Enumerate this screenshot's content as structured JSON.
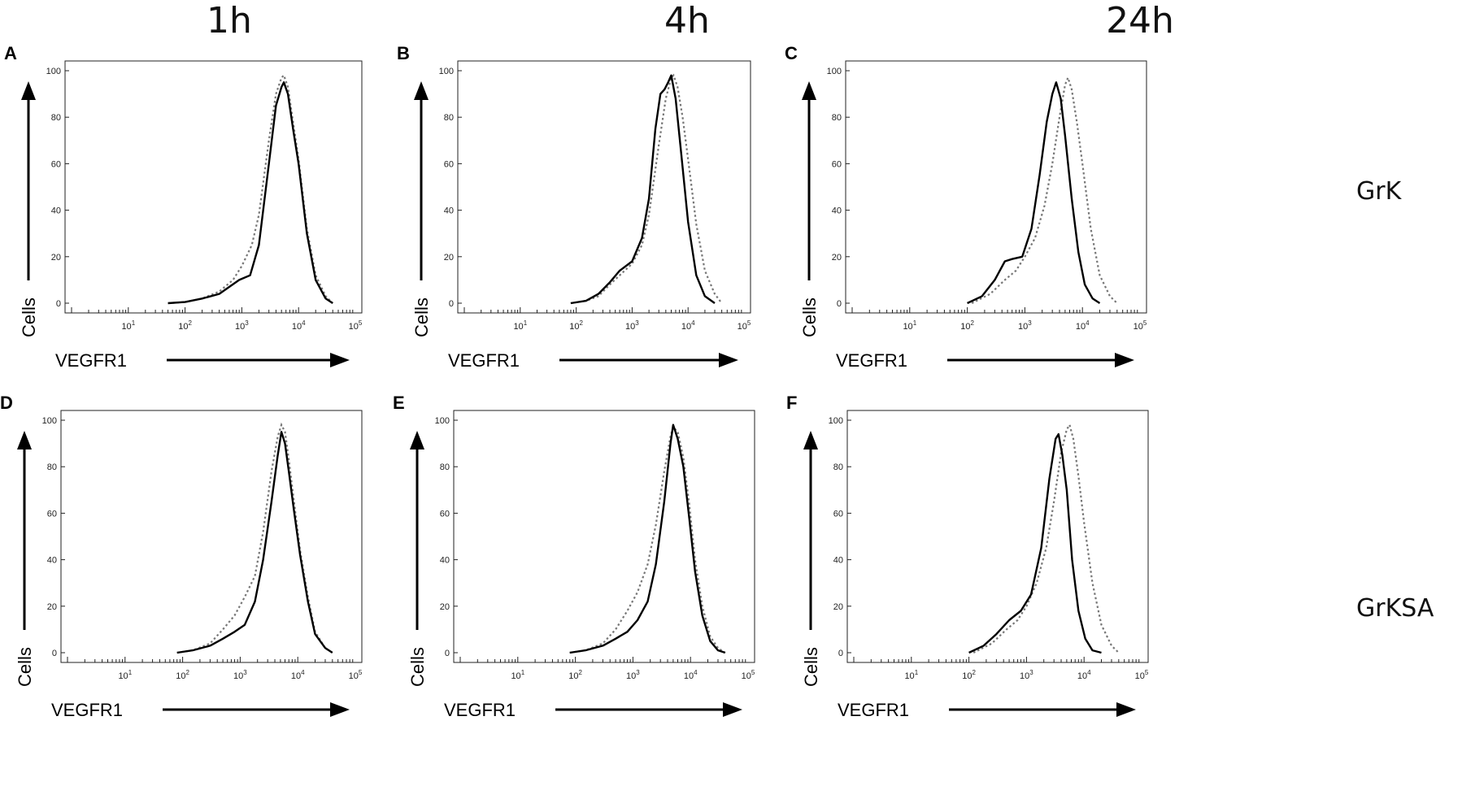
{
  "column_headers": [
    "1h",
    "4h",
    "24h"
  ],
  "row_labels": [
    "GrK",
    "GrKSA"
  ],
  "chart_data": [
    {
      "type": "line",
      "panel": "A",
      "time": "1h",
      "strain": "GrK",
      "xlabel": "VEGFR1",
      "ylabel": "Cells",
      "xscale": "log",
      "xlim": [
        1,
        100000
      ],
      "ylim": [
        0,
        100
      ],
      "yticks": [
        "0",
        "20",
        "40",
        "60",
        "80",
        "100"
      ],
      "xticks": [
        {
          "base": "10",
          "exp": "1"
        },
        {
          "base": "10",
          "exp": "2"
        },
        {
          "base": "10",
          "exp": "3"
        },
        {
          "base": "10",
          "exp": "4"
        },
        {
          "base": "10",
          "exp": "5"
        }
      ],
      "series": [
        {
          "name": "solid",
          "style": "solid",
          "x": [
            50,
            100,
            200,
            400,
            600,
            900,
            1400,
            2000,
            3000,
            4000,
            5000,
            5500,
            6500,
            8000,
            10000,
            14000,
            20000,
            30000,
            40000
          ],
          "y": [
            0,
            0.5,
            2,
            4,
            7,
            10,
            12,
            25,
            60,
            85,
            93,
            95,
            90,
            75,
            60,
            30,
            10,
            2,
            0
          ]
        },
        {
          "name": "dotted",
          "style": "dotted",
          "x": [
            50,
            100,
            200,
            400,
            700,
            1000,
            1500,
            2000,
            3000,
            4000,
            5000,
            5500,
            6500,
            8000,
            10000,
            14000,
            20000,
            30000,
            40000
          ],
          "y": [
            0,
            0.5,
            2,
            5,
            10,
            16,
            25,
            38,
            70,
            90,
            97,
            98,
            93,
            78,
            62,
            32,
            12,
            3,
            0
          ]
        }
      ]
    },
    {
      "type": "line",
      "panel": "B",
      "time": "4h",
      "strain": "GrK",
      "xlabel": "VEGFR1",
      "ylabel": "Cells",
      "xscale": "log",
      "xlim": [
        1,
        100000
      ],
      "ylim": [
        0,
        100
      ],
      "yticks": [
        "0",
        "20",
        "40",
        "60",
        "80",
        "100"
      ],
      "xticks": [
        {
          "base": "10",
          "exp": "1"
        },
        {
          "base": "10",
          "exp": "2"
        },
        {
          "base": "10",
          "exp": "3"
        },
        {
          "base": "10",
          "exp": "4"
        },
        {
          "base": "10",
          "exp": "5"
        }
      ],
      "series": [
        {
          "name": "solid",
          "style": "solid",
          "x": [
            80,
            150,
            250,
            400,
            600,
            1000,
            1500,
            2000,
            2600,
            3200,
            3800,
            4400,
            5000,
            6000,
            7500,
            10000,
            14000,
            20000,
            30000
          ],
          "y": [
            0,
            1,
            4,
            9,
            14,
            18,
            28,
            45,
            75,
            90,
            92,
            95,
            98,
            88,
            65,
            35,
            12,
            3,
            0
          ]
        },
        {
          "name": "dotted",
          "style": "dotted",
          "x": [
            80,
            150,
            250,
            400,
            600,
            1000,
            1500,
            2000,
            3000,
            4000,
            5000,
            5500,
            6500,
            8000,
            10000,
            14000,
            20000,
            30000,
            40000
          ],
          "y": [
            0,
            1,
            3,
            8,
            12,
            17,
            25,
            38,
            68,
            88,
            97,
            98,
            93,
            80,
            62,
            34,
            14,
            4,
            0
          ]
        }
      ]
    },
    {
      "type": "line",
      "panel": "C",
      "time": "24h",
      "strain": "GrK",
      "xlabel": "VEGFR1",
      "ylabel": "Cells",
      "xscale": "log",
      "xlim": [
        1,
        100000
      ],
      "ylim": [
        0,
        100
      ],
      "yticks": [
        "0",
        "20",
        "40",
        "60",
        "80",
        "100"
      ],
      "xticks": [
        {
          "base": "10",
          "exp": "1"
        },
        {
          "base": "10",
          "exp": "2"
        },
        {
          "base": "10",
          "exp": "3"
        },
        {
          "base": "10",
          "exp": "4"
        },
        {
          "base": "10",
          "exp": "5"
        }
      ],
      "series": [
        {
          "name": "solid",
          "style": "solid",
          "x": [
            100,
            180,
            300,
            450,
            600,
            900,
            1300,
            1800,
            2400,
            3000,
            3500,
            4200,
            5000,
            6500,
            8500,
            11000,
            15000,
            20000
          ],
          "y": [
            0,
            3,
            10,
            18,
            19,
            20,
            32,
            55,
            78,
            90,
            95,
            88,
            72,
            45,
            22,
            8,
            2,
            0
          ]
        },
        {
          "name": "dotted",
          "style": "dotted",
          "x": [
            120,
            250,
            450,
            700,
            1000,
            1500,
            2200,
            3000,
            4000,
            5000,
            5600,
            6500,
            8000,
            10000,
            14000,
            20000,
            30000,
            40000
          ],
          "y": [
            0,
            4,
            10,
            14,
            20,
            28,
            42,
            60,
            80,
            94,
            97,
            92,
            78,
            60,
            32,
            12,
            3,
            0
          ]
        }
      ]
    },
    {
      "type": "line",
      "panel": "D",
      "time": "1h",
      "strain": "GrKSA",
      "xlabel": "VEGFR1",
      "ylabel": "Cells",
      "xscale": "log",
      "xlim": [
        1,
        100000
      ],
      "ylim": [
        0,
        100
      ],
      "yticks": [
        "0",
        "20",
        "40",
        "60",
        "80",
        "100"
      ],
      "xticks": [
        {
          "base": "10",
          "exp": "1"
        },
        {
          "base": "10",
          "exp": "2"
        },
        {
          "base": "10",
          "exp": "3"
        },
        {
          "base": "10",
          "exp": "4"
        },
        {
          "base": "10",
          "exp": "5"
        }
      ],
      "series": [
        {
          "name": "solid",
          "style": "solid",
          "x": [
            80,
            150,
            300,
            500,
            800,
            1200,
            1800,
            2500,
            3500,
            4500,
            5200,
            6000,
            7000,
            8500,
            11000,
            15000,
            20000,
            30000,
            40000
          ],
          "y": [
            0,
            1,
            3,
            6,
            9,
            12,
            22,
            40,
            65,
            85,
            95,
            90,
            78,
            62,
            42,
            22,
            8,
            2,
            0
          ]
        },
        {
          "name": "dotted",
          "style": "dotted",
          "x": [
            80,
            150,
            300,
            500,
            800,
            1200,
            1800,
            2500,
            3500,
            4500,
            5200,
            6000,
            7000,
            8500,
            11000,
            15000,
            20000,
            30000,
            40000
          ],
          "y": [
            0,
            1,
            4,
            10,
            16,
            24,
            33,
            52,
            78,
            93,
            98,
            95,
            83,
            66,
            44,
            24,
            9,
            2,
            0
          ]
        }
      ]
    },
    {
      "type": "line",
      "panel": "E",
      "time": "4h",
      "strain": "GrKSA",
      "xlabel": "VEGFR1",
      "ylabel": "Cells",
      "xscale": "log",
      "xlim": [
        1,
        100000
      ],
      "ylim": [
        0,
        100
      ],
      "yticks": [
        "0",
        "20",
        "40",
        "60",
        "80",
        "100"
      ],
      "xticks": [
        {
          "base": "10",
          "exp": "1"
        },
        {
          "base": "10",
          "exp": "2"
        },
        {
          "base": "10",
          "exp": "3"
        },
        {
          "base": "10",
          "exp": "4"
        },
        {
          "base": "10",
          "exp": "5"
        }
      ],
      "series": [
        {
          "name": "solid",
          "style": "solid",
          "x": [
            80,
            150,
            300,
            500,
            800,
            1200,
            1800,
            2500,
            3500,
            4500,
            5000,
            6000,
            7500,
            9500,
            12000,
            16000,
            22000,
            30000,
            40000
          ],
          "y": [
            0,
            1,
            3,
            6,
            9,
            14,
            22,
            38,
            65,
            90,
            98,
            92,
            80,
            58,
            35,
            16,
            5,
            1,
            0
          ]
        },
        {
          "name": "dotted",
          "style": "dotted",
          "x": [
            80,
            150,
            300,
            500,
            800,
            1200,
            1800,
            2500,
            3500,
            4500,
            5000,
            6000,
            7500,
            9500,
            12000,
            16000,
            22000,
            30000,
            40000
          ],
          "y": [
            0,
            1,
            4,
            10,
            18,
            26,
            38,
            55,
            78,
            93,
            97,
            95,
            84,
            64,
            40,
            20,
            7,
            2,
            0
          ]
        }
      ]
    },
    {
      "type": "line",
      "panel": "F",
      "time": "24h",
      "strain": "GrKSA",
      "xlabel": "VEGFR1",
      "ylabel": "Cells",
      "xscale": "log",
      "xlim": [
        1,
        100000
      ],
      "ylim": [
        0,
        100
      ],
      "yticks": [
        "0",
        "20",
        "40",
        "60",
        "80",
        "100"
      ],
      "xticks": [
        {
          "base": "10",
          "exp": "1"
        },
        {
          "base": "10",
          "exp": "2"
        },
        {
          "base": "10",
          "exp": "3"
        },
        {
          "base": "10",
          "exp": "4"
        },
        {
          "base": "10",
          "exp": "5"
        }
      ],
      "series": [
        {
          "name": "solid",
          "style": "solid",
          "x": [
            100,
            180,
            300,
            500,
            800,
            1200,
            1800,
            2500,
            3200,
            3600,
            4200,
            5000,
            6200,
            8000,
            10500,
            14000,
            20000
          ],
          "y": [
            0,
            3,
            8,
            14,
            18,
            25,
            45,
            75,
            92,
            94,
            85,
            70,
            40,
            18,
            6,
            1,
            0
          ]
        },
        {
          "name": "dotted",
          "style": "dotted",
          "x": [
            120,
            250,
            450,
            700,
            1000,
            1500,
            2200,
            3000,
            4000,
            5000,
            5600,
            6500,
            8000,
            10000,
            14000,
            20000,
            30000,
            40000
          ],
          "y": [
            0,
            4,
            10,
            14,
            20,
            30,
            45,
            65,
            86,
            96,
            98,
            92,
            76,
            56,
            30,
            12,
            3,
            0
          ]
        }
      ]
    }
  ]
}
